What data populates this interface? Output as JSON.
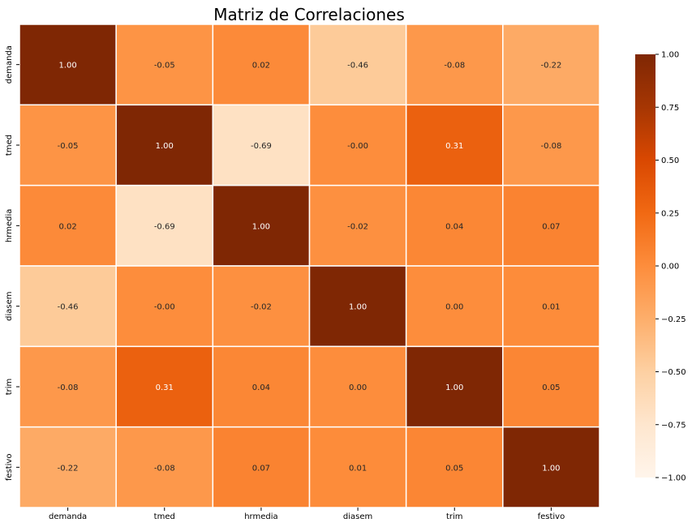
{
  "chart_data": {
    "type": "heatmap",
    "title": "Matriz de Correlaciones",
    "variables": [
      "demanda",
      "tmed",
      "hrmedia",
      "diasem",
      "trim",
      "festivo"
    ],
    "matrix": [
      [
        1.0,
        -0.05,
        0.02,
        -0.46,
        -0.08,
        -0.22
      ],
      [
        -0.05,
        1.0,
        -0.69,
        -0.0,
        0.31,
        -0.08
      ],
      [
        0.02,
        -0.69,
        1.0,
        -0.02,
        0.04,
        0.07
      ],
      [
        -0.46,
        -0.0,
        -0.02,
        1.0,
        0.0,
        0.01
      ],
      [
        -0.08,
        0.31,
        0.04,
        0.0,
        1.0,
        0.05
      ],
      [
        -0.22,
        -0.08,
        0.07,
        0.01,
        0.05,
        1.0
      ]
    ],
    "value_format": "0.00",
    "colorbar": {
      "min": -1.0,
      "max": 1.0,
      "ticks": [
        "1.00",
        "0.75",
        "0.50",
        "0.25",
        "0.00",
        "−0.25",
        "−0.50",
        "−0.75",
        "−1.00"
      ],
      "tick_values": [
        1.0,
        0.75,
        0.5,
        0.25,
        0.0,
        -0.25,
        -0.5,
        -0.75,
        -1.0
      ],
      "colormap": "Oranges"
    },
    "xlabel": "",
    "ylabel": "",
    "grid_lines": "white"
  }
}
